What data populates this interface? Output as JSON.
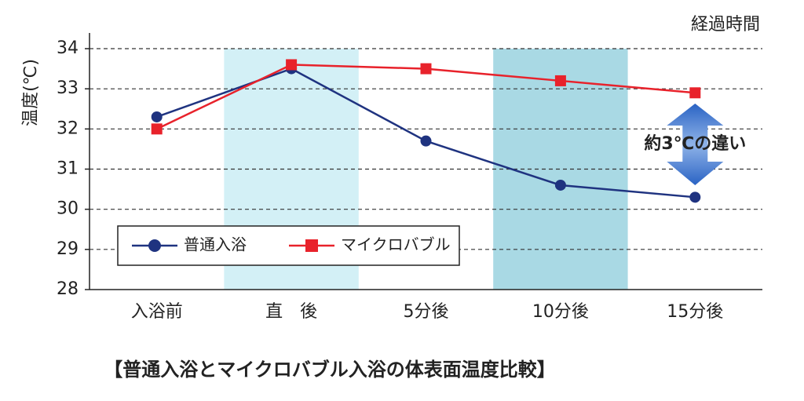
{
  "chart_data": {
    "type": "line",
    "title": "【普通入浴とマイクロバブル入浴の体表面温度比較】",
    "y_label": "温度(℃)",
    "x_label": "経過時間",
    "annotation": "約3℃の違い",
    "categories": [
      "入浴前",
      "直　後",
      "5分後",
      "10分後",
      "15分後"
    ],
    "series": [
      {
        "name": "普通入浴",
        "color": "#1f3380",
        "marker": "circle",
        "values": [
          32.3,
          33.5,
          31.7,
          30.6,
          30.3
        ]
      },
      {
        "name": "マイクロバブル",
        "color": "#e8222b",
        "marker": "square",
        "values": [
          32.0,
          33.6,
          33.5,
          33.2,
          32.9
        ]
      }
    ],
    "ylim": [
      28,
      34
    ],
    "yticks": [
      28,
      29,
      30,
      31,
      32,
      33,
      34
    ],
    "grid": true
  }
}
